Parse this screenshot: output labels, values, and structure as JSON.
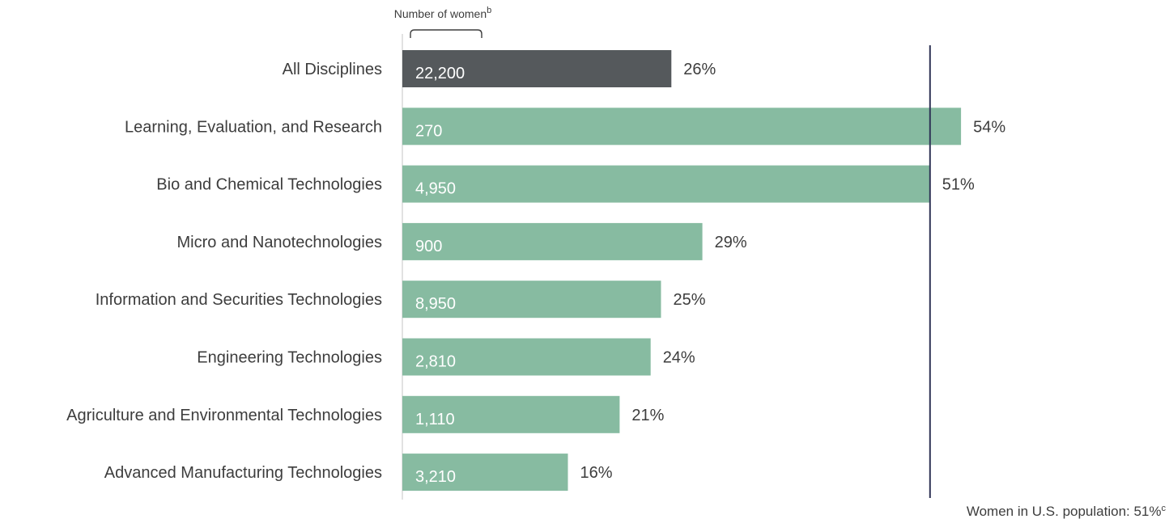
{
  "chart_data": {
    "type": "bar",
    "orientation": "horizontal",
    "header_label": "Number of women",
    "header_label_sup": "b",
    "categories": [
      "All Disciplines",
      "Learning, Evaluation, and Research",
      "Bio and Chemical Technologies",
      "Micro and Nanotechnologies",
      "Information and Securities Technologies",
      "Engineering Technologies",
      "Agriculture and Environmental Technologies",
      "Advanced Manufacturing Technologies"
    ],
    "values": [
      26,
      54,
      51,
      29,
      25,
      24,
      21,
      16
    ],
    "value_labels": [
      "26%",
      "54%",
      "51%",
      "29%",
      "25%",
      "24%",
      "21%",
      "16%"
    ],
    "counts": [
      "22,200",
      "270",
      "4,950",
      "900",
      "8,950",
      "2,810",
      "1,110",
      "3,210"
    ],
    "reference_line": {
      "value": 51,
      "label": "Women in U.S. population: 51%",
      "label_sup": "c"
    },
    "colors": {
      "highlight_bar": "#55595c",
      "bar": "#87bba1",
      "reference_line": "#2f3456",
      "axis": "#d9d9d9"
    },
    "xlim": [
      0,
      54
    ],
    "grid": false,
    "legend": "none"
  }
}
